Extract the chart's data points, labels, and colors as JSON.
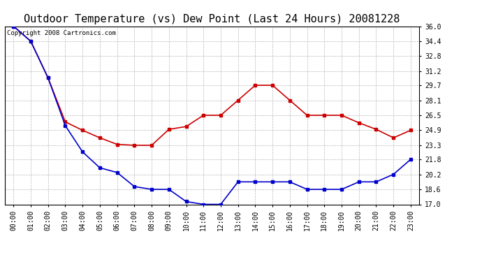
{
  "title": "Outdoor Temperature (vs) Dew Point (Last 24 Hours) 20081228",
  "copyright_text": "Copyright 2008 Cartronics.com",
  "x_labels": [
    "00:00",
    "01:00",
    "02:00",
    "03:00",
    "04:00",
    "05:00",
    "06:00",
    "07:00",
    "08:00",
    "09:00",
    "10:00",
    "11:00",
    "12:00",
    "13:00",
    "14:00",
    "15:00",
    "16:00",
    "17:00",
    "18:00",
    "19:00",
    "20:00",
    "21:00",
    "22:00",
    "23:00"
  ],
  "temp_data": [
    36.0,
    34.4,
    30.5,
    25.8,
    24.9,
    24.1,
    23.4,
    23.3,
    23.3,
    25.0,
    25.3,
    26.5,
    26.5,
    28.1,
    29.7,
    29.7,
    28.1,
    26.5,
    26.5,
    26.5,
    25.7,
    25.0,
    24.1,
    24.9
  ],
  "dew_data": [
    36.0,
    34.4,
    30.5,
    25.4,
    22.6,
    20.9,
    20.4,
    18.9,
    18.6,
    18.6,
    17.3,
    17.0,
    17.0,
    19.4,
    19.4,
    19.4,
    19.4,
    18.6,
    18.6,
    18.6,
    19.4,
    19.4,
    20.2,
    21.8
  ],
  "temp_color": "#cc0000",
  "dew_color": "#0000cc",
  "bg_color": "#ffffff",
  "grid_color": "#b0b0b0",
  "ylim_min": 17.0,
  "ylim_max": 36.0,
  "yticks": [
    17.0,
    18.6,
    20.2,
    21.8,
    23.3,
    24.9,
    26.5,
    28.1,
    29.7,
    31.2,
    32.8,
    34.4,
    36.0
  ],
  "title_fontsize": 11,
  "tick_fontsize": 7,
  "copyright_fontsize": 6.5,
  "marker_size": 2.5,
  "line_width": 1.2
}
